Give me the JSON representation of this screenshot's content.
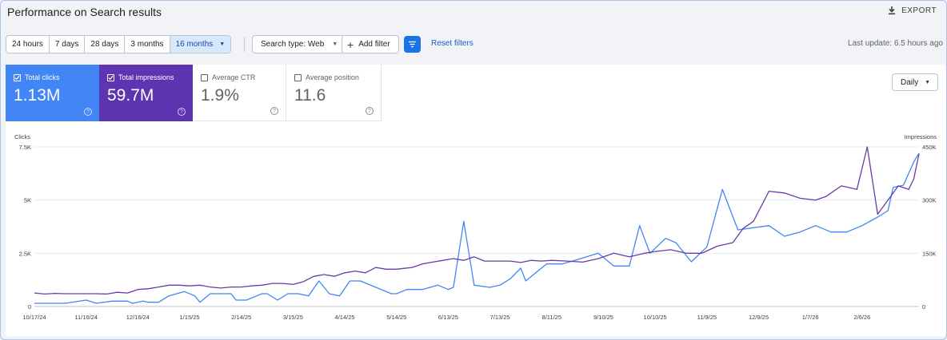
{
  "header": {
    "title": "Performance on Search results",
    "export_label": "EXPORT"
  },
  "toolbar": {
    "ranges": [
      {
        "label": "24 hours",
        "active": false
      },
      {
        "label": "7 days",
        "active": false
      },
      {
        "label": "28 days",
        "active": false
      },
      {
        "label": "3 months",
        "active": false
      },
      {
        "label": "16 months",
        "active": true
      }
    ],
    "search_type": "Search type: Web",
    "add_filter": "Add filter",
    "reset_filters": "Reset filters",
    "last_update": "Last update: 6.5 hours ago"
  },
  "metrics": {
    "clicks": {
      "label": "Total clicks",
      "value": "1.13M",
      "checked": true,
      "color": "#4285f4"
    },
    "impressions": {
      "label": "Total impressions",
      "value": "59.7M",
      "checked": true,
      "color": "#5e35b1"
    },
    "ctr": {
      "label": "Average CTR",
      "value": "1.9%",
      "checked": false
    },
    "position": {
      "label": "Average position",
      "value": "11.6",
      "checked": false
    }
  },
  "granularity": {
    "selected": "Daily"
  },
  "icons": {
    "export": "download-icon",
    "add_filter": "plus-icon",
    "filter": "filter-icon",
    "help": "help-icon",
    "checkbox": "checkbox-icon"
  },
  "chart_data": {
    "type": "line",
    "left_axis": {
      "label": "Clicks",
      "ticks": [
        "0",
        "2.5K",
        "5K",
        "7.5K"
      ],
      "ylim": [
        0,
        7500
      ]
    },
    "right_axis": {
      "label": "Impressions",
      "ticks": [
        "0",
        "150K",
        "300K",
        "450K"
      ],
      "ylim": [
        0,
        450000
      ]
    },
    "x_ticks": [
      "10/17/24",
      "11/16/24",
      "12/16/24",
      "1/15/25",
      "2/14/25",
      "3/15/25",
      "4/14/25",
      "5/14/25",
      "6/13/25",
      "7/13/25",
      "8/11/25",
      "9/10/25",
      "10/10/25",
      "11/9/25",
      "12/9/25",
      "1/7/26",
      "2/6/26"
    ],
    "x_range": [
      0,
      17.1
    ],
    "grid": true,
    "series": [
      {
        "name": "Total clicks",
        "axis": "left",
        "color": "#4285f4",
        "points": [
          [
            0,
            150
          ],
          [
            0.4,
            150
          ],
          [
            0.6,
            150
          ],
          [
            1.0,
            300
          ],
          [
            1.2,
            150
          ],
          [
            1.5,
            250
          ],
          [
            1.8,
            250
          ],
          [
            1.9,
            150
          ],
          [
            2.1,
            250
          ],
          [
            2.2,
            200
          ],
          [
            2.4,
            200
          ],
          [
            2.6,
            500
          ],
          [
            2.9,
            700
          ],
          [
            3.1,
            500
          ],
          [
            3.2,
            200
          ],
          [
            3.4,
            600
          ],
          [
            3.6,
            600
          ],
          [
            3.8,
            600
          ],
          [
            3.9,
            300
          ],
          [
            4.1,
            300
          ],
          [
            4.2,
            400
          ],
          [
            4.4,
            600
          ],
          [
            4.5,
            600
          ],
          [
            4.7,
            300
          ],
          [
            4.9,
            600
          ],
          [
            5.1,
            600
          ],
          [
            5.3,
            500
          ],
          [
            5.5,
            1200
          ],
          [
            5.7,
            600
          ],
          [
            5.9,
            500
          ],
          [
            6.1,
            1200
          ],
          [
            6.3,
            1200
          ],
          [
            6.6,
            900
          ],
          [
            6.9,
            600
          ],
          [
            7.0,
            600
          ],
          [
            7.2,
            800
          ],
          [
            7.5,
            800
          ],
          [
            7.8,
            1000
          ],
          [
            8.0,
            800
          ],
          [
            8.1,
            900
          ],
          [
            8.3,
            4000
          ],
          [
            8.5,
            1000
          ],
          [
            8.8,
            900
          ],
          [
            9.0,
            1000
          ],
          [
            9.2,
            1300
          ],
          [
            9.4,
            1800
          ],
          [
            9.5,
            1200
          ],
          [
            9.7,
            1600
          ],
          [
            9.9,
            2000
          ],
          [
            10.2,
            2000
          ],
          [
            10.5,
            2200
          ],
          [
            10.9,
            2500
          ],
          [
            11.2,
            1900
          ],
          [
            11.5,
            1900
          ],
          [
            11.7,
            3800
          ],
          [
            11.9,
            2500
          ],
          [
            12.2,
            3200
          ],
          [
            12.4,
            3000
          ],
          [
            12.7,
            2100
          ],
          [
            13.0,
            2800
          ],
          [
            13.3,
            5500
          ],
          [
            13.6,
            3600
          ],
          [
            13.9,
            3700
          ],
          [
            14.2,
            3800
          ],
          [
            14.5,
            3300
          ],
          [
            14.8,
            3500
          ],
          [
            15.1,
            3800
          ],
          [
            15.4,
            3500
          ],
          [
            15.7,
            3500
          ],
          [
            16.0,
            3800
          ],
          [
            16.3,
            4200
          ],
          [
            16.5,
            4500
          ],
          [
            16.6,
            5600
          ],
          [
            16.8,
            5700
          ],
          [
            17.0,
            6800
          ],
          [
            17.1,
            7200
          ]
        ]
      },
      {
        "name": "Total impressions",
        "axis": "right",
        "color": "#6a3aa7",
        "points": [
          [
            0,
            38000
          ],
          [
            0.2,
            35000
          ],
          [
            0.4,
            37000
          ],
          [
            0.6,
            36000
          ],
          [
            0.8,
            36000
          ],
          [
            1.0,
            36000
          ],
          [
            1.2,
            36000
          ],
          [
            1.4,
            35000
          ],
          [
            1.6,
            40000
          ],
          [
            1.8,
            38000
          ],
          [
            2.0,
            48000
          ],
          [
            2.2,
            50000
          ],
          [
            2.4,
            55000
          ],
          [
            2.6,
            60000
          ],
          [
            2.8,
            60000
          ],
          [
            3.0,
            58000
          ],
          [
            3.2,
            60000
          ],
          [
            3.4,
            55000
          ],
          [
            3.6,
            52000
          ],
          [
            3.8,
            55000
          ],
          [
            4.0,
            55000
          ],
          [
            4.2,
            58000
          ],
          [
            4.4,
            60000
          ],
          [
            4.6,
            65000
          ],
          [
            4.8,
            65000
          ],
          [
            5.0,
            62000
          ],
          [
            5.2,
            70000
          ],
          [
            5.4,
            85000
          ],
          [
            5.6,
            90000
          ],
          [
            5.8,
            85000
          ],
          [
            6.0,
            95000
          ],
          [
            6.2,
            100000
          ],
          [
            6.4,
            95000
          ],
          [
            6.6,
            110000
          ],
          [
            6.8,
            105000
          ],
          [
            7.0,
            105000
          ],
          [
            7.3,
            110000
          ],
          [
            7.5,
            120000
          ],
          [
            7.7,
            125000
          ],
          [
            7.9,
            130000
          ],
          [
            8.1,
            135000
          ],
          [
            8.3,
            130000
          ],
          [
            8.5,
            140000
          ],
          [
            8.7,
            128000
          ],
          [
            9.0,
            128000
          ],
          [
            9.2,
            128000
          ],
          [
            9.4,
            124000
          ],
          [
            9.6,
            130000
          ],
          [
            9.8,
            128000
          ],
          [
            10.0,
            130000
          ],
          [
            10.3,
            128000
          ],
          [
            10.6,
            125000
          ],
          [
            10.9,
            135000
          ],
          [
            11.2,
            150000
          ],
          [
            11.5,
            140000
          ],
          [
            11.8,
            150000
          ],
          [
            12.0,
            155000
          ],
          [
            12.3,
            160000
          ],
          [
            12.6,
            150000
          ],
          [
            12.9,
            150000
          ],
          [
            13.2,
            170000
          ],
          [
            13.5,
            180000
          ],
          [
            13.7,
            220000
          ],
          [
            13.9,
            240000
          ],
          [
            14.2,
            325000
          ],
          [
            14.5,
            320000
          ],
          [
            14.8,
            305000
          ],
          [
            15.1,
            300000
          ],
          [
            15.3,
            310000
          ],
          [
            15.6,
            340000
          ],
          [
            15.9,
            330000
          ],
          [
            16.1,
            450000
          ],
          [
            16.3,
            260000
          ],
          [
            16.5,
            300000
          ],
          [
            16.7,
            340000
          ],
          [
            16.9,
            330000
          ],
          [
            17.0,
            360000
          ],
          [
            17.1,
            430000
          ]
        ]
      }
    ]
  }
}
